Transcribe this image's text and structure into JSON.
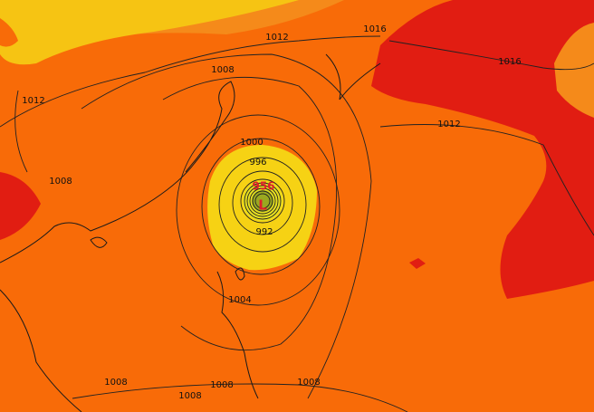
{
  "isobar_labels": [
    "1012",
    "1016",
    "1016",
    "1008",
    "1012",
    "1012",
    "1008",
    "1000",
    "996",
    "992",
    "1004",
    "1008",
    "1008",
    "1008",
    "1008"
  ],
  "low": {
    "pressure": "956",
    "symbol": "L"
  }
}
